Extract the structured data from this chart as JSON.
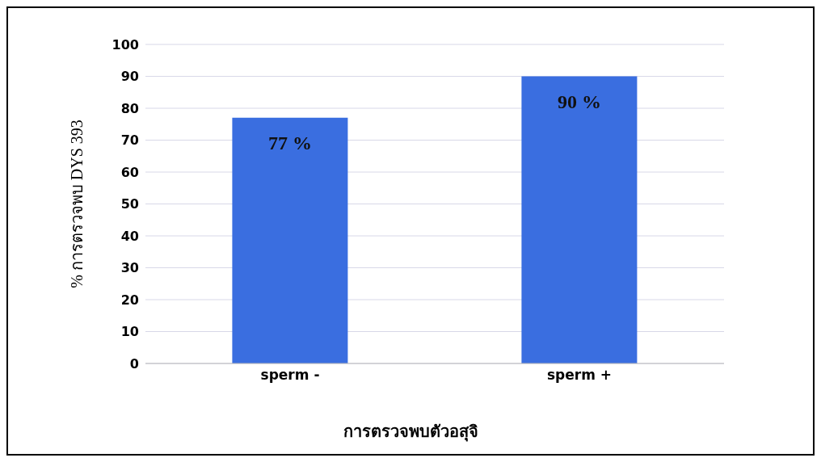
{
  "chart_data": {
    "type": "bar",
    "xlabel": "การตรวจพบตัวอสุจิ",
    "ylabel": "% การตรวจพบ DYS 393",
    "categories": [
      "sperm -",
      "sperm +"
    ],
    "values": [
      77,
      90
    ],
    "color": "#3a6ee0",
    "value_labels": [
      "77 %",
      "90 %"
    ],
    "ylim": [
      0,
      100
    ],
    "yticks": [
      0,
      10,
      20,
      30,
      40,
      50,
      60,
      70,
      80,
      90,
      100
    ],
    "grid": "y"
  }
}
